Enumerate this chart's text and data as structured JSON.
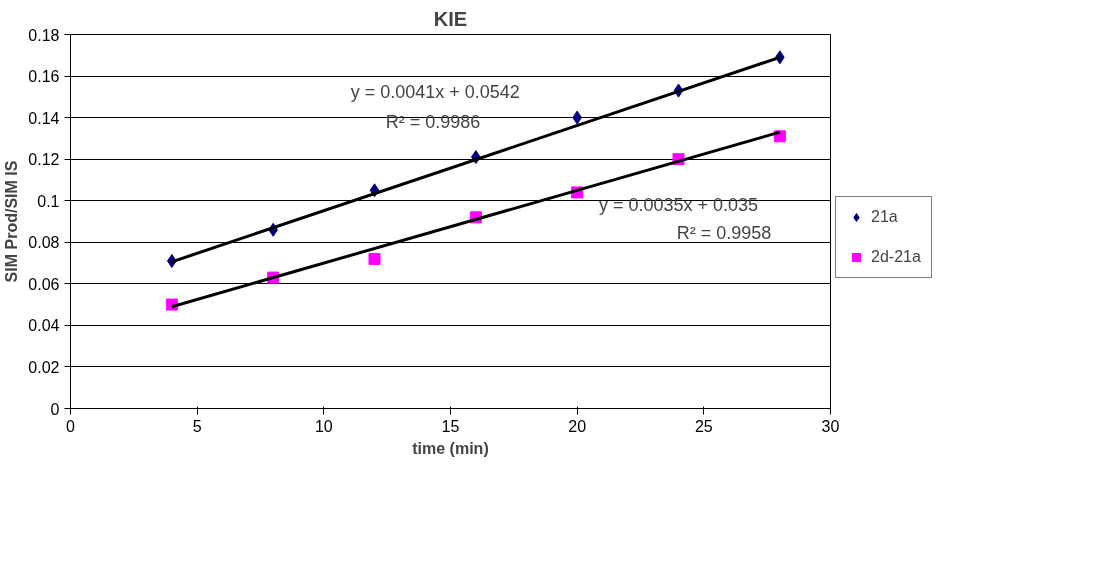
{
  "chart_data": {
    "type": "scatter",
    "title": "KIE",
    "xlabel": "time (min)",
    "ylabel": "SIM Prod/SIM IS",
    "xlim": [
      0,
      30
    ],
    "xticks": [
      0,
      5,
      10,
      15,
      20,
      25,
      30
    ],
    "ylim": [
      0,
      0.18
    ],
    "yticks": [
      0,
      0.02,
      0.04,
      0.06,
      0.08,
      0.1,
      0.12,
      0.14,
      0.16,
      0.18
    ],
    "grid": "y",
    "legend": "right",
    "series": [
      {
        "name": "21a",
        "color": "#000080",
        "marker": "diamond",
        "x": [
          4,
          8,
          12,
          16,
          20,
          24,
          28
        ],
        "values": [
          0.071,
          0.086,
          0.105,
          0.121,
          0.14,
          0.153,
          0.169
        ]
      },
      {
        "name": "2d-21a",
        "color": "#ff00ff",
        "marker": "square",
        "x": [
          4,
          8,
          12,
          16,
          20,
          24,
          28
        ],
        "values": [
          0.05,
          0.063,
          0.072,
          0.092,
          0.104,
          0.12,
          0.131
        ]
      },
      {
        "type": "line",
        "color": "#000000",
        "x": [
          4,
          28
        ],
        "values": [
          0.0706,
          0.169
        ]
      },
      {
        "type": "line",
        "color": "#000000",
        "x": [
          4,
          28
        ],
        "values": [
          0.049,
          0.133
        ]
      }
    ],
    "annotations": [
      "y = 0.0041x + 0.0542",
      "R² = 0.9986",
      "y = 0.0035x + 0.035",
      "R² = 0.9958"
    ]
  }
}
